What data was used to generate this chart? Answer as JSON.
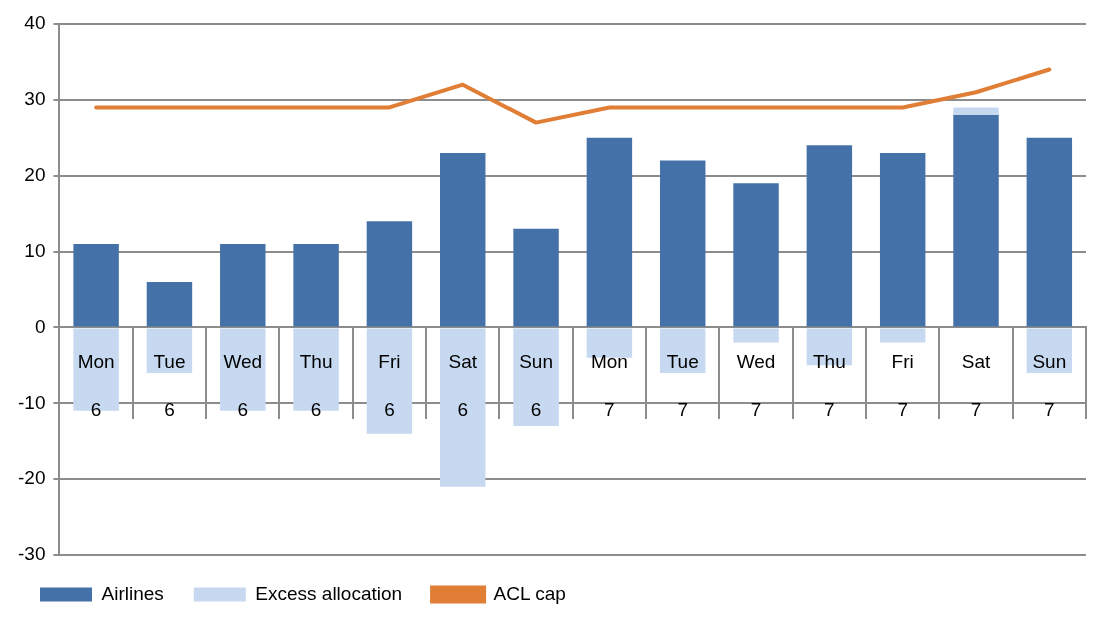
{
  "chart_data": {
    "type": "bar",
    "categories": [
      "Mon\n6",
      "Tue\n6",
      "Wed\n6",
      "Thu\n6",
      "Fri\n6",
      "Sat\n6",
      "Sun\n6",
      "Mon\n7",
      "Tue\n7",
      "Wed\n7",
      "Thu\n7",
      "Fri\n7",
      "Sat\n7",
      "Sun\n7"
    ],
    "series": [
      {
        "name": "Airlines",
        "color": "#4472a8",
        "values": [
          11,
          6,
          11,
          11,
          14,
          23,
          13,
          25,
          22,
          19,
          24,
          23,
          28,
          25
        ]
      },
      {
        "name": "Excess allocation",
        "color": "#c6d9f1",
        "values": [
          -11,
          -6,
          -11,
          -11,
          -14,
          -21,
          -13,
          -4,
          -6,
          -2,
          -5,
          -2,
          1,
          -6
        ]
      },
      {
        "name": "ACL cap",
        "type": "line",
        "color": "#e07e35",
        "values": [
          29,
          29,
          29,
          29,
          29,
          32,
          27,
          29,
          29,
          29,
          29,
          29,
          31,
          34
        ]
      }
    ],
    "ylim": [
      -30,
      40
    ],
    "yticks": [
      -30,
      -20,
      -10,
      0,
      10,
      20,
      30,
      40
    ],
    "grid": "y",
    "legend": "bottom",
    "marker": "none",
    "stacked": true
  }
}
